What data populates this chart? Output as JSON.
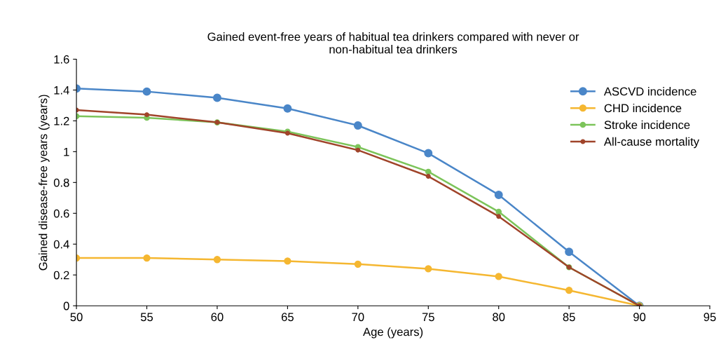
{
  "chart_data": {
    "type": "line",
    "title": "Gained event-free years of habitual tea drinkers compared with never or\nnon-habitual tea drinkers",
    "xlabel": "Age (years)",
    "ylabel": "Gained disease-free years (years)",
    "x": [
      50,
      55,
      60,
      65,
      70,
      75,
      80,
      85,
      90
    ],
    "series": [
      {
        "name": "ASCVD incidence",
        "color": "#4a86c8",
        "values": [
          1.41,
          1.39,
          1.35,
          1.28,
          1.17,
          0.99,
          0.72,
          0.35,
          0
        ]
      },
      {
        "name": "CHD incidence",
        "color": "#f5b731",
        "values": [
          0.31,
          0.31,
          0.3,
          0.29,
          0.27,
          0.24,
          0.19,
          0.1,
          0
        ]
      },
      {
        "name": "Stroke incidence",
        "color": "#7cc45a",
        "values": [
          1.23,
          1.22,
          1.19,
          1.13,
          1.03,
          0.87,
          0.61,
          0.25,
          0
        ]
      },
      {
        "name": "All-cause mortality",
        "color": "#a0442a",
        "values": [
          1.27,
          1.24,
          1.19,
          1.12,
          1.01,
          0.84,
          0.58,
          0.25,
          0
        ]
      }
    ],
    "xlim": [
      50,
      95
    ],
    "xticks": [
      50,
      55,
      60,
      65,
      70,
      75,
      80,
      85,
      90,
      95
    ],
    "ylim": [
      0,
      1.6
    ],
    "yticks": [
      0,
      0.2,
      0.4,
      0.6,
      0.8,
      1,
      1.2,
      1.4,
      1.6
    ],
    "grid": false,
    "legend": "top right",
    "marker": "circle",
    "line_style": "solid"
  }
}
